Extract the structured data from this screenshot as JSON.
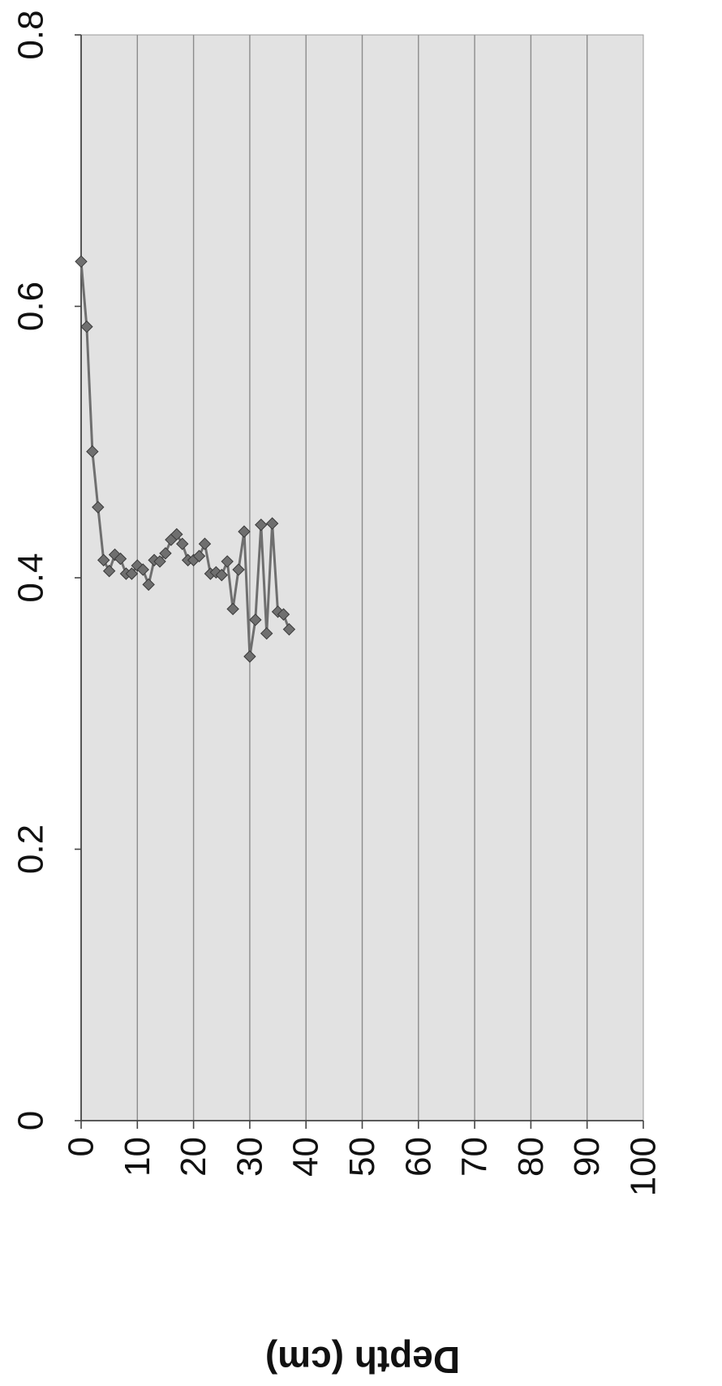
{
  "chart_data": {
    "type": "line",
    "orientation": "rotated-90-clockwise",
    "title": "",
    "xlabel": "Depth (cm)",
    "ylabel": "",
    "xlim": [
      0,
      100
    ],
    "ylim": [
      0,
      0.8
    ],
    "x_ticks": [
      "0",
      "10",
      "20",
      "30",
      "40",
      "50",
      "60",
      "70",
      "80",
      "90",
      "100"
    ],
    "y_ticks": [
      "0",
      "0.2",
      "0.4",
      "0.6",
      "0.8"
    ],
    "grid": true,
    "legend": "none",
    "marker": "diamond",
    "colors": {
      "plot_background": "#e2e2e2",
      "series": "#6f6f6f",
      "marker_stroke": "#3a3a3a",
      "grid": "#8c8c8c",
      "axis": "#444444"
    },
    "series": [
      {
        "x": [
          0,
          1,
          2,
          3,
          4,
          5,
          6,
          7,
          8,
          9,
          10,
          11,
          12,
          13,
          14,
          15,
          16,
          17,
          18,
          19,
          20,
          21,
          22,
          23,
          24,
          25,
          26,
          27,
          28,
          29,
          30,
          31,
          32,
          33,
          34,
          35,
          36,
          37
        ],
        "y": [
          0.633,
          0.585,
          0.493,
          0.452,
          0.413,
          0.405,
          0.417,
          0.414,
          0.403,
          0.403,
          0.409,
          0.406,
          0.395,
          0.413,
          0.412,
          0.418,
          0.428,
          0.432,
          0.425,
          0.413,
          0.413,
          0.416,
          0.425,
          0.403,
          0.404,
          0.402,
          0.412,
          0.377,
          0.406,
          0.434,
          0.342,
          0.369,
          0.439,
          0.359,
          0.44,
          0.375,
          0.373,
          0.362
        ]
      }
    ]
  }
}
